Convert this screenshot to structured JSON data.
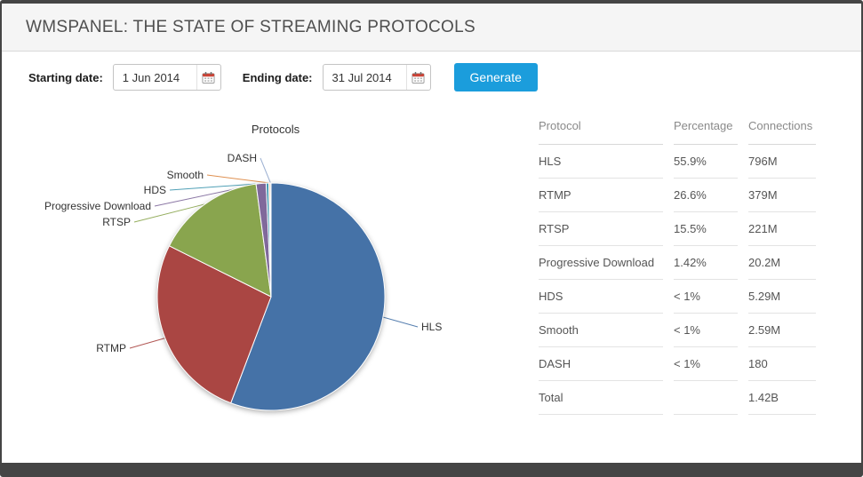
{
  "header": {
    "title": "WMSPANEL: THE STATE OF STREAMING PROTOCOLS"
  },
  "colors": {
    "accent_blue": "#1b9ddc",
    "frame_dark": "#454545",
    "header_bg": "#f5f5f5"
  },
  "form": {
    "start_label": "Starting date:",
    "start_value": "1 Jun 2014",
    "end_label": "Ending date:",
    "end_value": "31 Jul 2014",
    "generate_label": "Generate",
    "calendar_icon": "calendar-icon"
  },
  "chart_data": {
    "type": "pie",
    "title": "Protocols",
    "legend": "none",
    "labels": "outside-with-connectors",
    "slices": [
      {
        "name": "HLS",
        "value": 796,
        "percentage": "55.9%",
        "connections": "796M",
        "color": "#4572a7"
      },
      {
        "name": "RTMP",
        "value": 379,
        "percentage": "26.6%",
        "connections": "379M",
        "color": "#aa4643"
      },
      {
        "name": "RTSP",
        "value": 221,
        "percentage": "15.5%",
        "connections": "221M",
        "color": "#89a54e"
      },
      {
        "name": "Progressive Download",
        "value": 20.2,
        "percentage": "1.42%",
        "connections": "20.2M",
        "color": "#80699b"
      },
      {
        "name": "HDS",
        "value": 5.29,
        "percentage": "< 1%",
        "connections": "5.29M",
        "color": "#3d96ae"
      },
      {
        "name": "Smooth",
        "value": 2.59,
        "percentage": "< 1%",
        "connections": "2.59M",
        "color": "#db843d"
      },
      {
        "name": "DASH",
        "value": 0.00018,
        "percentage": "< 1%",
        "connections": "180",
        "color": "#92a8cd"
      }
    ],
    "value_unit": "millions of connections",
    "total_label": "Total",
    "total_connections": "1.42B"
  },
  "table": {
    "headers": [
      "Protocol",
      "Percentage",
      "Connections"
    ],
    "rows": [
      [
        "HLS",
        "55.9%",
        "796M"
      ],
      [
        "RTMP",
        "26.6%",
        "379M"
      ],
      [
        "RTSP",
        "15.5%",
        "221M"
      ],
      [
        "Progressive Download",
        "1.42%",
        "20.2M"
      ],
      [
        "HDS",
        "< 1%",
        "5.29M"
      ],
      [
        "Smooth",
        "< 1%",
        "2.59M"
      ],
      [
        "DASH",
        "< 1%",
        "180"
      ],
      [
        "Total",
        "",
        "1.42B"
      ]
    ]
  }
}
